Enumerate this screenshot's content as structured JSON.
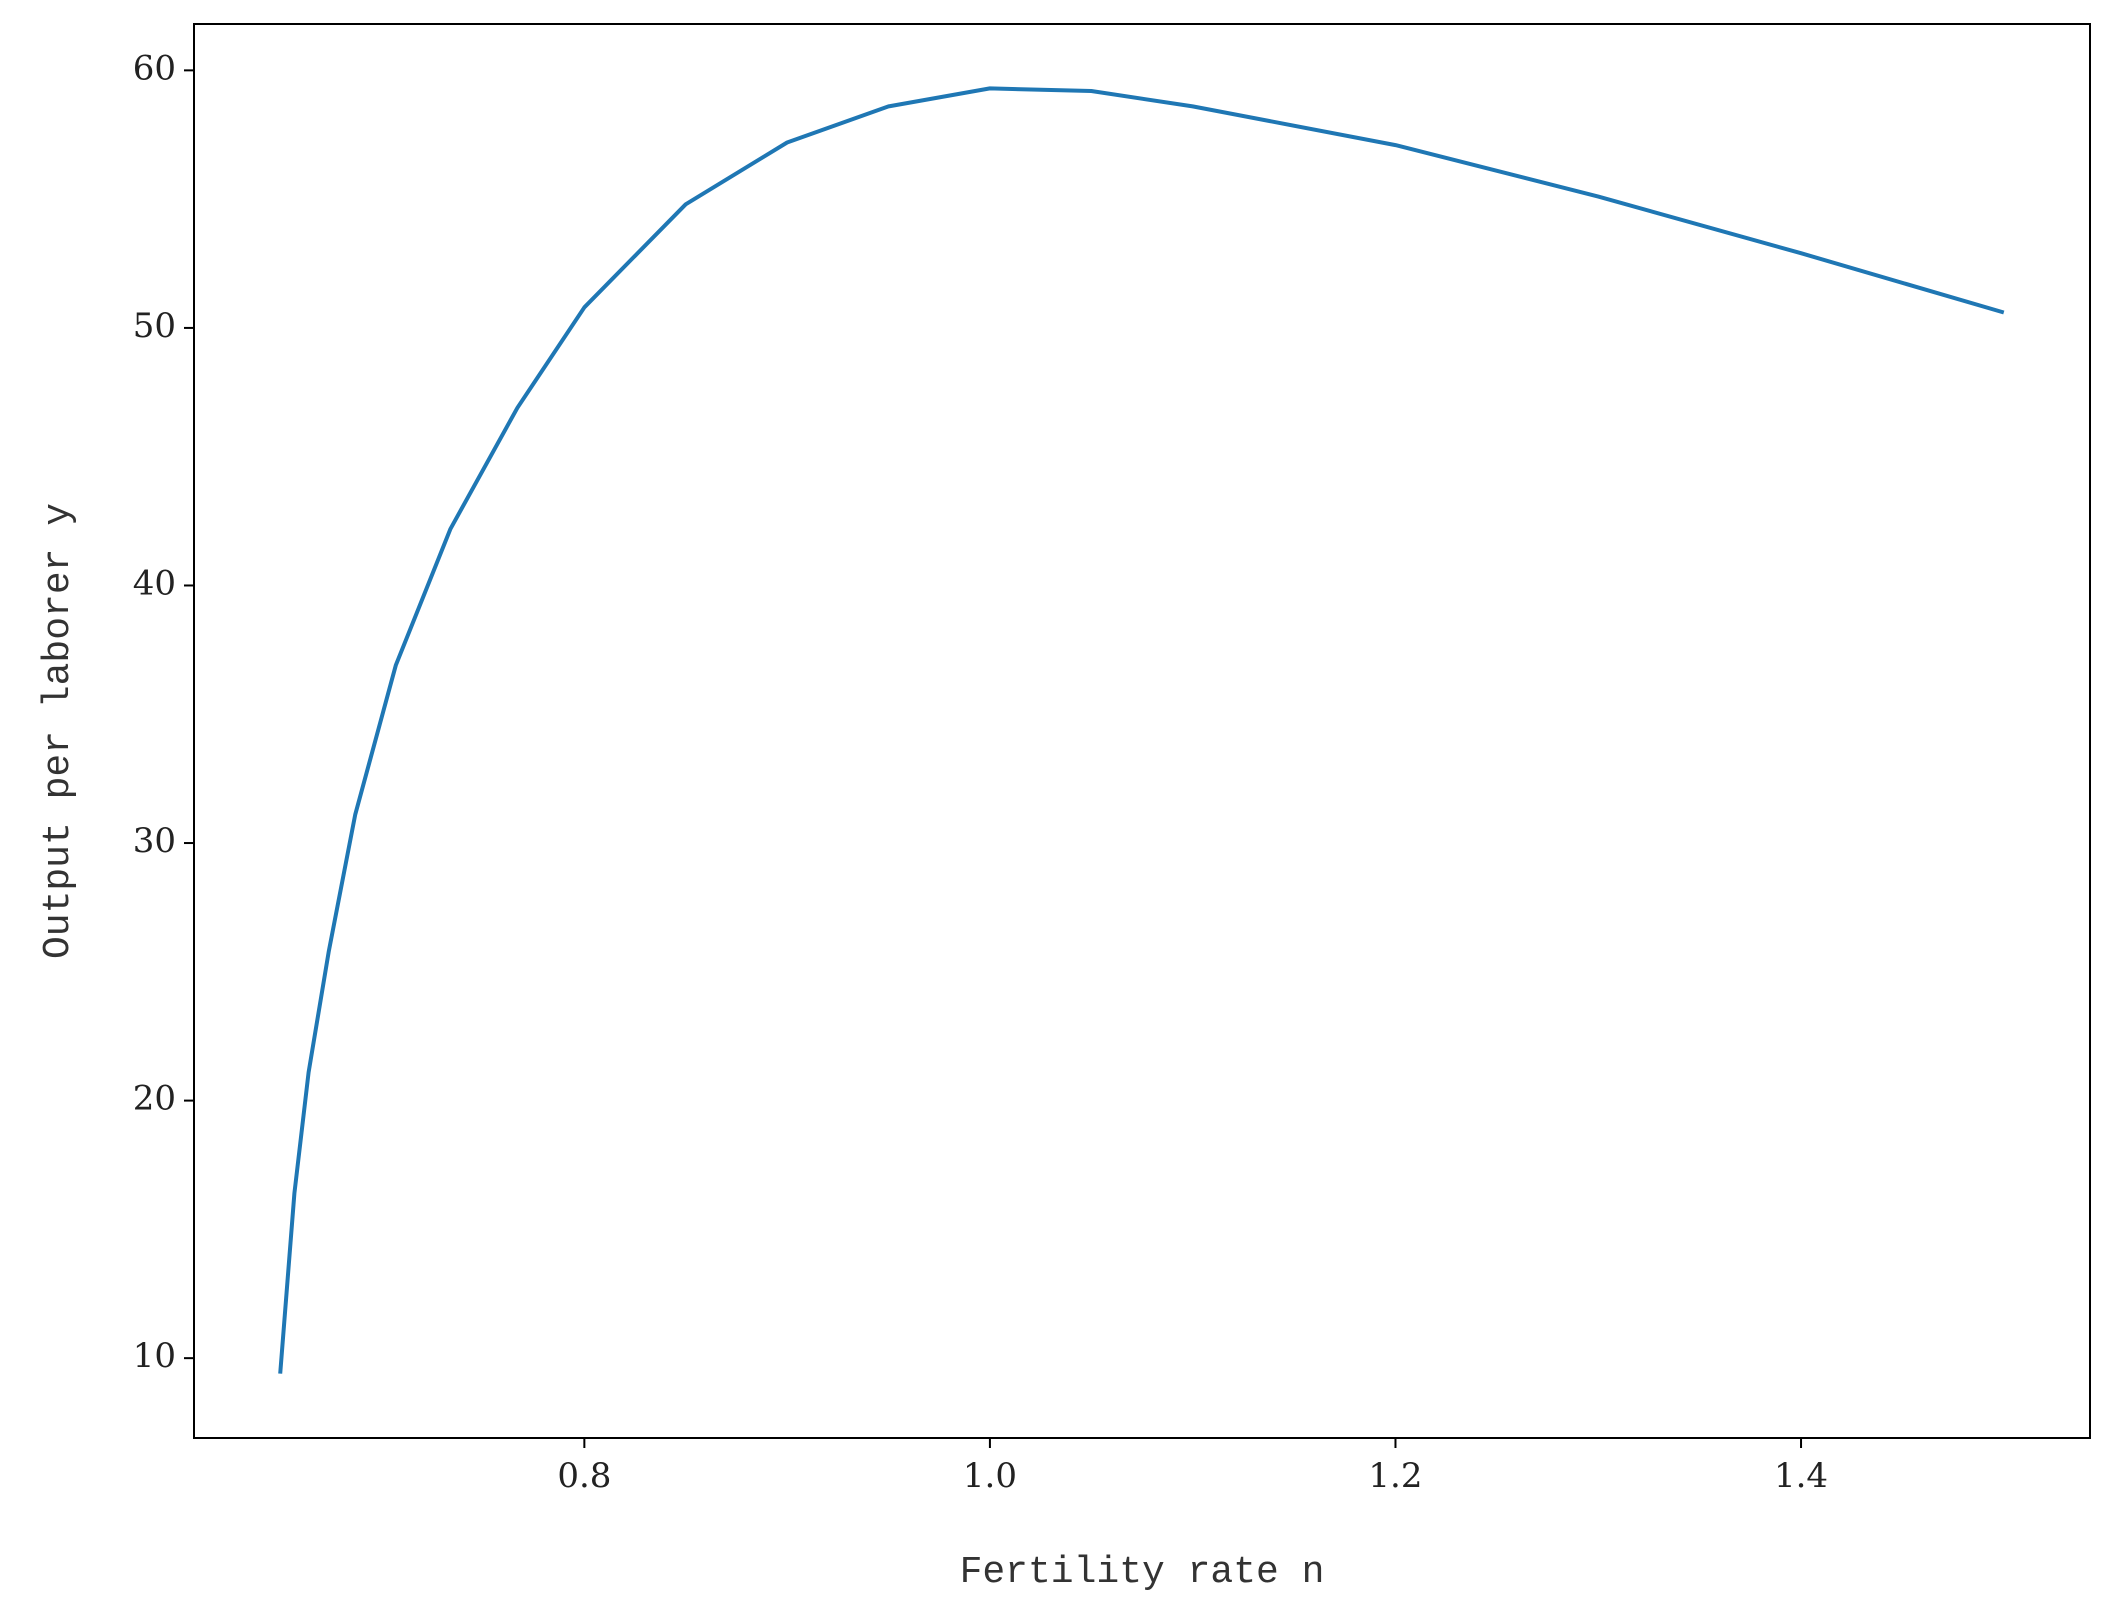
{
  "chart_data": {
    "type": "line",
    "x_label": "Fertility rate n",
    "y_label": "Output per laborer y",
    "x": [
      0.65,
      0.657,
      0.664,
      0.674,
      0.687,
      0.707,
      0.734,
      0.767,
      0.8,
      0.85,
      0.9,
      0.95,
      1.0,
      1.05,
      1.1,
      1.2,
      1.3,
      1.4,
      1.5
    ],
    "series": [
      {
        "color": "#1f77b4",
        "values": [
          9.4,
          16.4,
          21.1,
          25.8,
          31.1,
          36.9,
          42.2,
          46.9,
          50.8,
          54.8,
          57.2,
          58.6,
          59.3,
          59.2,
          58.6,
          57.1,
          55.1,
          52.9,
          50.6
        ]
      }
    ],
    "xlim": [
      0.6075,
      1.5425
    ],
    "ylim": [
      6.9,
      61.8
    ],
    "xticks": [
      0.8,
      {
        "value": 1.0,
        "label": "1.0"
      },
      1.2,
      1.4
    ],
    "yticks": [
      10,
      20,
      30,
      40,
      50,
      60
    ],
    "grid": false
  }
}
